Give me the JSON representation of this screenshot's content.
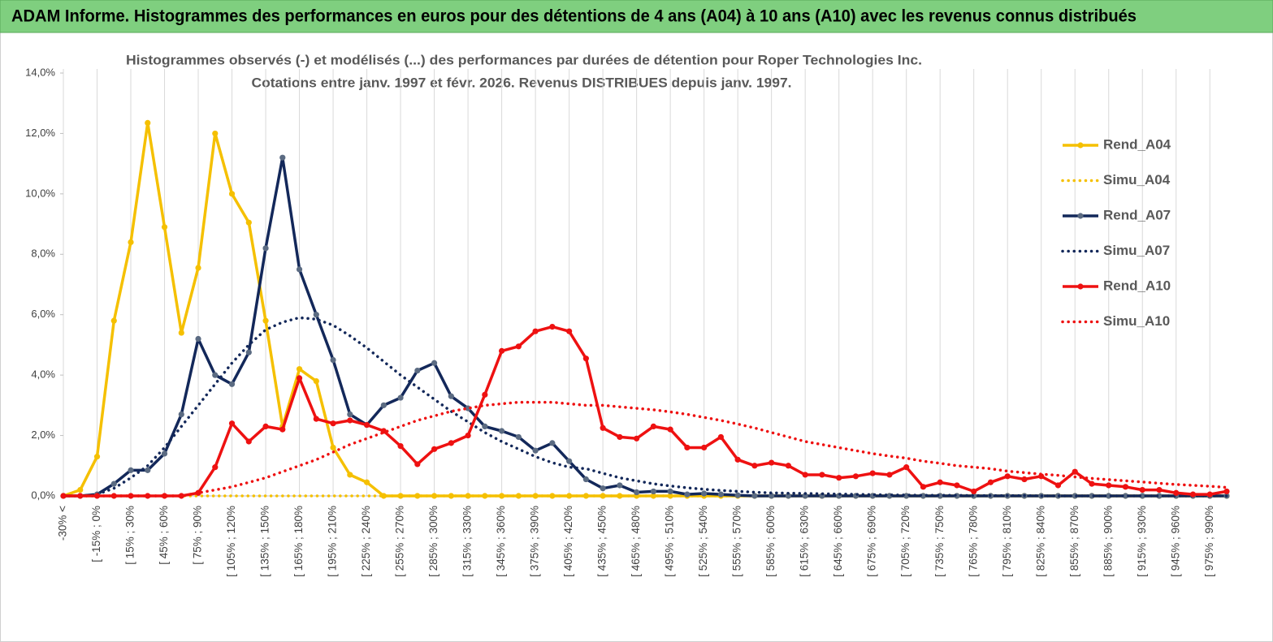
{
  "banner": "ADAM Informe. Histogrammes des performances en euros pour des détentions de 4 ans (A04) à 10 ans (A10) avec les revenus connus distribués",
  "chart_data": {
    "type": "line",
    "title": [
      "Histogrammes observés (-) et modélisés (...)  des performances par durées de détention pour Roper Technologies Inc.",
      "Cotations entre janv. 1997 et févr. 2026. Revenus DISTRIBUES depuis janv. 1997."
    ],
    "categories": [
      "-30% <",
      null,
      "[ -15% ; 0%",
      null,
      "[ 15% ; 30%",
      null,
      "[ 45% ; 60%",
      null,
      "[ 75% ; 90%",
      null,
      "[ 105% ; 120%",
      null,
      "[ 135% ; 150%",
      null,
      "[ 165% ; 180%",
      null,
      "[ 195% ; 210%",
      null,
      "[ 225% ; 240%",
      null,
      "[ 255% ; 270%",
      null,
      "[ 285% ; 300%",
      null,
      "[ 315% ; 330%",
      null,
      "[ 345% ; 360%",
      null,
      "[ 375% ; 390%",
      null,
      "[ 405% ; 420%",
      null,
      "[ 435% ; 450%",
      null,
      "[ 465% ; 480%",
      null,
      "[ 495% ; 510%",
      null,
      "[ 525% ; 540%",
      null,
      "[ 555% ; 570%",
      null,
      "[ 585% ; 600%",
      null,
      "[ 615% ; 630%",
      null,
      "[ 645% ; 660%",
      null,
      "[ 675% ; 690%",
      null,
      "[ 705% ; 720%",
      null,
      "[ 735% ; 750%",
      null,
      "[ 765% ; 780%",
      null,
      "[ 795% ; 810%",
      null,
      "[ 825% ; 840%",
      null,
      "[ 855% ; 870%",
      null,
      "[ 885% ; 900%",
      null,
      "[ 915% ; 930%",
      null,
      "[ 945% ; 960%",
      null,
      "[ 975% ; 990%",
      null
    ],
    "series": [
      {
        "name": "Rend_A04",
        "color": "#f5c000",
        "style": "solid",
        "markers": true,
        "values": [
          0,
          0.2,
          1.3,
          5.8,
          8.4,
          12.35,
          8.9,
          5.4,
          7.55,
          12.0,
          10.0,
          9.05,
          5.8,
          2.3,
          4.2,
          3.8,
          1.6,
          0.7,
          0.45,
          0,
          0,
          0,
          0,
          0,
          0,
          0,
          0,
          0,
          0,
          0,
          0,
          0,
          0,
          0,
          0,
          0,
          0,
          0,
          0,
          0,
          0,
          0,
          0,
          0,
          0,
          0,
          0,
          0,
          0,
          0,
          0,
          0,
          0,
          0,
          0,
          0,
          0,
          0,
          0,
          0,
          0,
          0,
          0,
          0,
          0,
          0,
          0,
          0,
          0,
          0
        ]
      },
      {
        "name": "Simu_A04",
        "color": "#f5c000",
        "style": "dotted",
        "markers": false,
        "values": [
          0,
          0,
          0,
          0,
          0,
          0,
          0,
          0,
          0,
          0,
          0,
          0,
          0,
          0,
          0,
          0,
          0,
          0,
          0,
          0,
          0,
          0,
          0,
          0,
          0,
          0,
          0,
          0,
          0,
          0,
          0,
          0,
          0,
          0,
          0,
          0,
          0,
          0,
          0,
          0,
          0,
          0,
          0,
          0,
          0,
          0,
          0,
          0,
          0,
          0,
          0,
          0,
          0,
          0,
          0,
          0,
          0,
          0,
          0,
          0,
          0,
          0,
          0,
          0,
          0,
          0,
          0,
          0,
          0,
          0
        ]
      },
      {
        "name": "Rend_A07",
        "color": "#13285a",
        "marker_color": "#5b6b82",
        "style": "solid",
        "markers": true,
        "values": [
          0,
          0,
          0.05,
          0.4,
          0.85,
          0.85,
          1.4,
          2.7,
          5.2,
          4.0,
          3.7,
          4.75,
          8.2,
          11.2,
          7.5,
          6.0,
          4.5,
          2.7,
          2.35,
          3.0,
          3.25,
          4.15,
          4.4,
          3.3,
          2.9,
          2.3,
          2.15,
          1.95,
          1.5,
          1.75,
          1.15,
          0.55,
          0.25,
          0.35,
          0.12,
          0.15,
          0.15,
          0.05,
          0.08,
          0.05,
          0.02,
          0,
          0,
          0,
          0,
          0,
          0,
          0,
          0,
          0,
          0,
          0,
          0,
          0,
          0,
          0,
          0,
          0,
          0,
          0,
          0,
          0,
          0,
          0,
          0,
          0,
          0,
          0,
          0,
          0
        ]
      },
      {
        "name": "Simu_A07",
        "color": "#13285a",
        "style": "dotted",
        "markers": false,
        "values": [
          0,
          0,
          0.05,
          0.25,
          0.6,
          1.0,
          1.6,
          2.3,
          3.0,
          3.7,
          4.4,
          5.0,
          5.5,
          5.75,
          5.9,
          5.85,
          5.65,
          5.3,
          4.9,
          4.45,
          4.0,
          3.6,
          3.2,
          2.8,
          2.45,
          2.1,
          1.8,
          1.55,
          1.3,
          1.1,
          0.95,
          0.9,
          0.75,
          0.6,
          0.5,
          0.4,
          0.33,
          0.27,
          0.22,
          0.18,
          0.15,
          0.12,
          0.1,
          0.09,
          0.08,
          0.07,
          0.06,
          0.05,
          0.04,
          0.03,
          0.03,
          0.02,
          0.02,
          0.02,
          0.01,
          0.01,
          0.01,
          0.01,
          0,
          0,
          0,
          0,
          0,
          0,
          0,
          0,
          0,
          0,
          0,
          0
        ]
      },
      {
        "name": "Rend_A10",
        "color": "#ee1111",
        "style": "solid",
        "markers": true,
        "values": [
          0,
          0,
          0,
          0,
          0,
          0,
          0,
          0,
          0.1,
          0.95,
          2.4,
          1.8,
          2.3,
          2.2,
          3.9,
          2.55,
          2.4,
          2.5,
          2.35,
          2.15,
          1.65,
          1.05,
          1.55,
          1.75,
          2.0,
          3.35,
          4.8,
          4.95,
          5.45,
          5.6,
          5.45,
          4.55,
          2.25,
          1.95,
          1.9,
          2.3,
          2.2,
          1.6,
          1.6,
          1.95,
          1.2,
          1.0,
          1.1,
          1.0,
          0.7,
          0.7,
          0.6,
          0.65,
          0.75,
          0.7,
          0.95,
          0.3,
          0.45,
          0.35,
          0.15,
          0.45,
          0.65,
          0.55,
          0.65,
          0.35,
          0.8,
          0.4,
          0.35,
          0.3,
          0.2,
          0.2,
          0.1,
          0.05,
          0.05,
          0.15
        ]
      },
      {
        "name": "Simu_A10",
        "color": "#ee1111",
        "style": "dotted",
        "markers": false,
        "values": [
          0,
          0,
          0,
          0,
          0,
          0,
          0,
          0,
          0.1,
          0.2,
          0.3,
          0.45,
          0.6,
          0.8,
          1.0,
          1.2,
          1.45,
          1.7,
          1.9,
          2.1,
          2.3,
          2.5,
          2.65,
          2.8,
          2.9,
          3.0,
          3.05,
          3.1,
          3.1,
          3.1,
          3.05,
          3.0,
          3.0,
          2.95,
          2.9,
          2.85,
          2.78,
          2.7,
          2.6,
          2.5,
          2.38,
          2.25,
          2.1,
          1.95,
          1.8,
          1.7,
          1.6,
          1.5,
          1.4,
          1.32,
          1.25,
          1.15,
          1.08,
          1.0,
          0.95,
          0.9,
          0.82,
          0.77,
          0.72,
          0.68,
          0.63,
          0.58,
          0.54,
          0.5,
          0.46,
          0.42,
          0.38,
          0.35,
          0.32,
          0.28
        ]
      }
    ],
    "ylim": [
      0,
      14
    ],
    "yticks": [
      {
        "value": 0,
        "label": "0,0%"
      },
      {
        "value": 2,
        "label": "2,0%"
      },
      {
        "value": 4,
        "label": "4,0%"
      },
      {
        "value": 6,
        "label": "6,0%"
      },
      {
        "value": 8,
        "label": "8,0%"
      },
      {
        "value": 10,
        "label": "10,0%"
      },
      {
        "value": 12,
        "label": "12,0%"
      },
      {
        "value": 14,
        "label": "14,0%"
      }
    ],
    "grid": "x",
    "legend": "right"
  }
}
